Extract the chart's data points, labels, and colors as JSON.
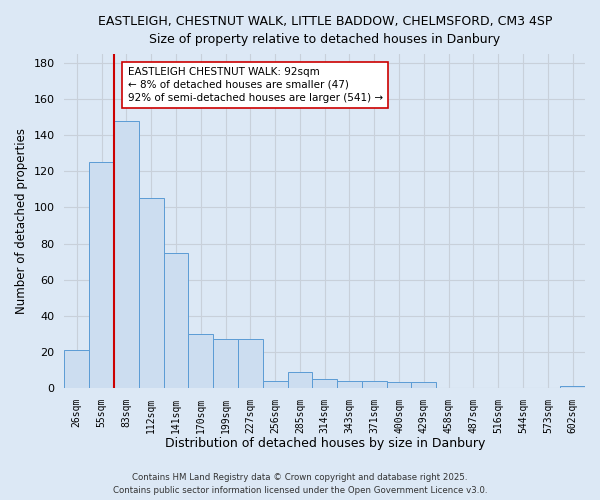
{
  "title_line1": "EASTLEIGH, CHESTNUT WALK, LITTLE BADDOW, CHELMSFORD, CM3 4SP",
  "title_line2": "Size of property relative to detached houses in Danbury",
  "xlabel": "Distribution of detached houses by size in Danbury",
  "ylabel": "Number of detached properties",
  "categories": [
    "26sqm",
    "55sqm",
    "83sqm",
    "112sqm",
    "141sqm",
    "170sqm",
    "199sqm",
    "227sqm",
    "256sqm",
    "285sqm",
    "314sqm",
    "343sqm",
    "371sqm",
    "400sqm",
    "429sqm",
    "458sqm",
    "487sqm",
    "516sqm",
    "544sqm",
    "573sqm",
    "602sqm"
  ],
  "values": [
    21,
    125,
    148,
    105,
    75,
    30,
    27,
    27,
    4,
    9,
    5,
    4,
    4,
    3,
    3,
    0,
    0,
    0,
    0,
    0,
    1
  ],
  "bar_color": "#ccddf0",
  "bar_edge_color": "#5b9bd5",
  "grid_color": "#c8d0da",
  "background_color": "#dce8f5",
  "vline_color": "#cc0000",
  "vline_pos": 1.5,
  "annotation_line1": "EASTLEIGH CHESTNUT WALK: 92sqm",
  "annotation_line2": "← 8% of detached houses are smaller (47)",
  "annotation_line3": "92% of semi-detached houses are larger (541) →",
  "annotation_box_edge": "#cc0000",
  "footer_line1": "Contains HM Land Registry data © Crown copyright and database right 2025.",
  "footer_line2": "Contains public sector information licensed under the Open Government Licence v3.0.",
  "ylim": [
    0,
    185
  ],
  "yticks": [
    0,
    20,
    40,
    60,
    80,
    100,
    120,
    140,
    160,
    180
  ]
}
